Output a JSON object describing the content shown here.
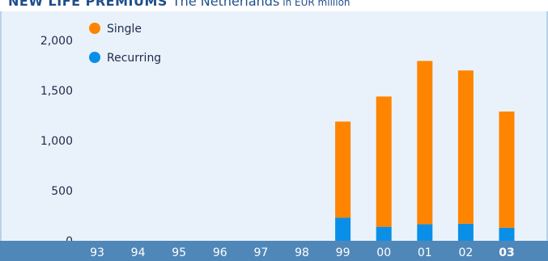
{
  "header": {
    "title": "NEW LIFE PREMIUMS",
    "subtitle": "The Netherlands",
    "unit": "in EUR million"
  },
  "chart_data": {
    "type": "bar",
    "stacked": true,
    "categories": [
      "93",
      "94",
      "95",
      "96",
      "97",
      "98",
      "99",
      "00",
      "01",
      "02",
      "03"
    ],
    "highlighted_category": "03",
    "series": [
      {
        "name": "Recurring",
        "color": "#0a8fe8",
        "values": [
          0,
          0,
          0,
          0,
          0,
          0,
          230,
          140,
          165,
          170,
          130
        ]
      },
      {
        "name": "Single",
        "color": "#ff8400",
        "values": [
          0,
          0,
          0,
          0,
          0,
          0,
          960,
          1300,
          1630,
          1530,
          1160
        ]
      }
    ],
    "yticks": [
      "2,000",
      "1,500",
      "1,000",
      "500",
      "0"
    ],
    "ytick_values": [
      2000,
      1500,
      1000,
      500,
      0
    ],
    "ylim": [
      0,
      2000
    ],
    "legend_position": "top-left",
    "background_color": "#e9f2fb",
    "axis_band_color": "#4f87b9"
  }
}
